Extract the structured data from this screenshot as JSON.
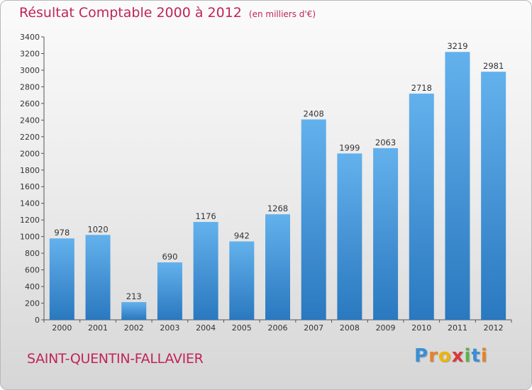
{
  "title": "Résultat Comptable 2000 à 2012",
  "unit": "(en milliers d'€)",
  "location": "SAINT-QUENTIN-FALLAVIER",
  "logo": {
    "letters": [
      "P",
      "r",
      "o",
      "x",
      "i",
      "t",
      "i"
    ],
    "colors": [
      "#3a8fd6",
      "#e5822a",
      "#f0b400",
      "#d93a3a",
      "#5fb246",
      "#3a8fd6",
      "#e5822a"
    ]
  },
  "colors": {
    "bar": "#3d94d8",
    "bar_light": "#63b1ec",
    "bar_dark": "#2a78bf",
    "title": "#c0245a"
  },
  "chart_data": {
    "type": "bar",
    "title": "Résultat Comptable 2000 à 2012",
    "xlabel": "",
    "ylabel": "",
    "categories": [
      "2000",
      "2001",
      "2002",
      "2003",
      "2004",
      "2005",
      "2006",
      "2007",
      "2008",
      "2009",
      "2010",
      "2011",
      "2012"
    ],
    "values": [
      978,
      1020,
      213,
      690,
      1176,
      942,
      1268,
      2408,
      1999,
      2063,
      2718,
      3219,
      2981
    ],
    "ylim": [
      0,
      3400
    ],
    "yticks": [
      0,
      200,
      400,
      600,
      800,
      1000,
      1200,
      1400,
      1600,
      1800,
      2000,
      2200,
      2400,
      2600,
      2800,
      3000,
      3200,
      3400
    ],
    "grid": false,
    "legend": "none"
  }
}
